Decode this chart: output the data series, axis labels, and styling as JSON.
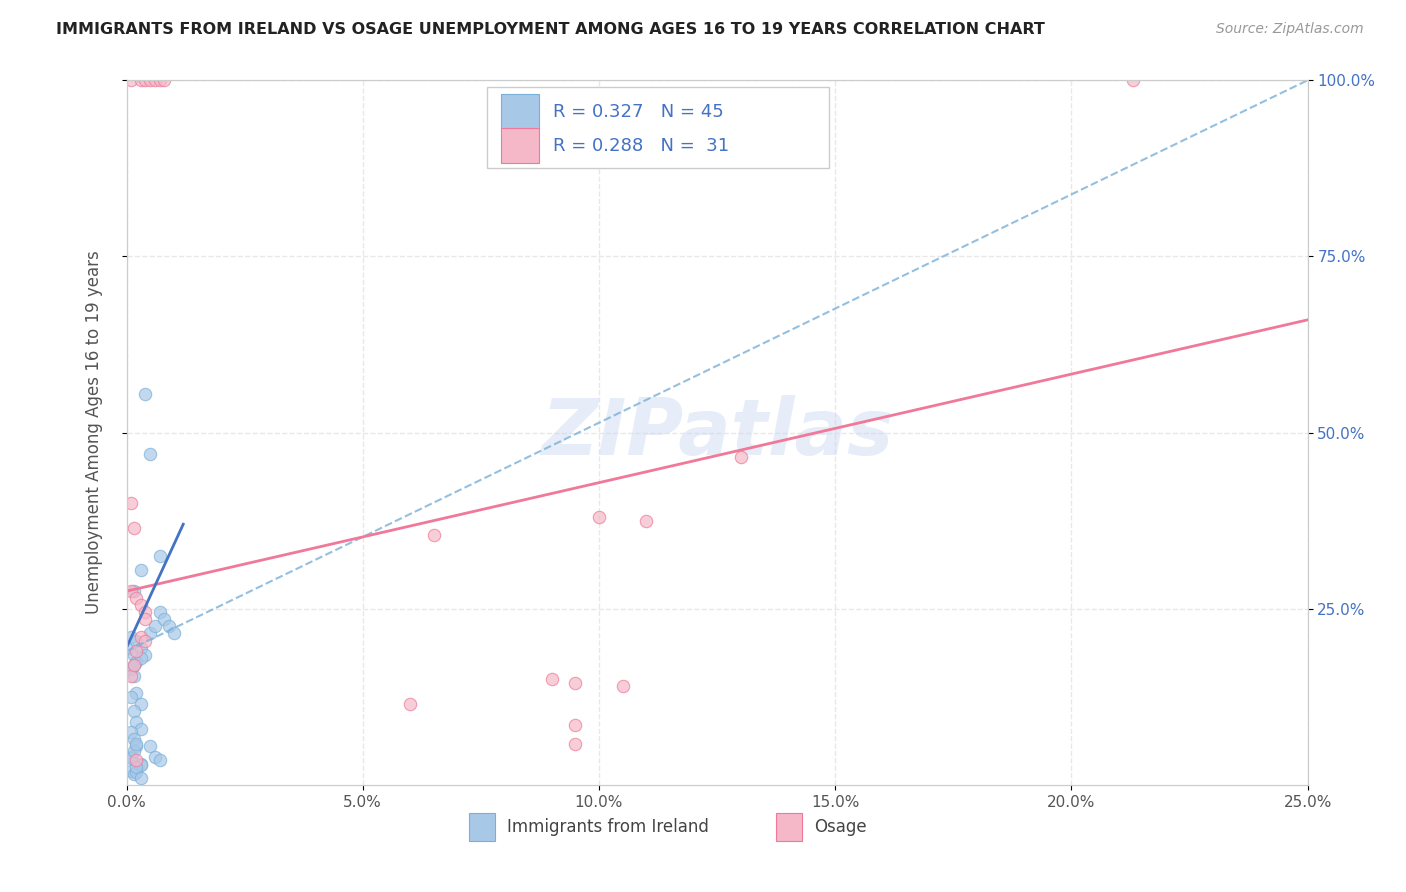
{
  "title": "IMMIGRANTS FROM IRELAND VS OSAGE UNEMPLOYMENT AMONG AGES 16 TO 19 YEARS CORRELATION CHART",
  "source": "Source: ZipAtlas.com",
  "ylabel": "Unemployment Among Ages 16 to 19 years",
  "legend_label1": "Immigrants from Ireland",
  "legend_label2": "Osage",
  "R1": 0.327,
  "N1": 45,
  "R2": 0.288,
  "N2": 31,
  "xlim": [
    0.0,
    0.25
  ],
  "ylim": [
    0.0,
    1.0
  ],
  "xticks": [
    0.0,
    0.05,
    0.1,
    0.15,
    0.2,
    0.25
  ],
  "yticks": [
    0.25,
    0.5,
    0.75,
    1.0
  ],
  "xtick_labels": [
    "0.0%",
    "5.0%",
    "10.0%",
    "15.0%",
    "20.0%",
    "25.0%"
  ],
  "ytick_labels_right": [
    "25.0%",
    "50.0%",
    "75.0%",
    "100.0%"
  ],
  "color_blue": "#a8c8e8",
  "color_pink": "#f4b8c8",
  "line_blue_dash": "#7ab0d8",
  "line_pink_solid": "#f07898",
  "line_blue_solid": "#4472c4",
  "blue_scatter": [
    [
      0.0005,
      0.195
    ],
    [
      0.001,
      0.21
    ],
    [
      0.0015,
      0.185
    ],
    [
      0.001,
      0.165
    ],
    [
      0.002,
      0.175
    ],
    [
      0.0015,
      0.155
    ],
    [
      0.002,
      0.13
    ],
    [
      0.001,
      0.125
    ],
    [
      0.003,
      0.115
    ],
    [
      0.0015,
      0.105
    ],
    [
      0.002,
      0.09
    ],
    [
      0.003,
      0.08
    ],
    [
      0.001,
      0.075
    ],
    [
      0.0015,
      0.065
    ],
    [
      0.002,
      0.055
    ],
    [
      0.001,
      0.04
    ],
    [
      0.003,
      0.03
    ],
    [
      0.001,
      0.02
    ],
    [
      0.0015,
      0.015
    ],
    [
      0.002,
      0.018
    ],
    [
      0.003,
      0.028
    ],
    [
      0.001,
      0.038
    ],
    [
      0.0015,
      0.048
    ],
    [
      0.002,
      0.058
    ],
    [
      0.0015,
      0.17
    ],
    [
      0.003,
      0.305
    ],
    [
      0.004,
      0.555
    ],
    [
      0.005,
      0.47
    ],
    [
      0.005,
      0.215
    ],
    [
      0.006,
      0.225
    ],
    [
      0.007,
      0.325
    ],
    [
      0.007,
      0.245
    ],
    [
      0.008,
      0.235
    ],
    [
      0.009,
      0.225
    ],
    [
      0.01,
      0.215
    ],
    [
      0.002,
      0.205
    ],
    [
      0.003,
      0.195
    ],
    [
      0.004,
      0.185
    ],
    [
      0.0015,
      0.275
    ],
    [
      0.003,
      0.18
    ],
    [
      0.005,
      0.055
    ],
    [
      0.006,
      0.04
    ],
    [
      0.007,
      0.035
    ],
    [
      0.002,
      0.025
    ],
    [
      0.003,
      0.01
    ]
  ],
  "pink_scatter": [
    [
      0.001,
      1.0
    ],
    [
      0.003,
      1.0
    ],
    [
      0.004,
      1.0
    ],
    [
      0.005,
      1.0
    ],
    [
      0.006,
      1.0
    ],
    [
      0.007,
      1.0
    ],
    [
      0.008,
      1.0
    ],
    [
      0.213,
      1.0
    ],
    [
      0.001,
      0.4
    ],
    [
      0.0015,
      0.365
    ],
    [
      0.001,
      0.275
    ],
    [
      0.002,
      0.265
    ],
    [
      0.003,
      0.255
    ],
    [
      0.004,
      0.245
    ],
    [
      0.004,
      0.235
    ],
    [
      0.001,
      0.155
    ],
    [
      0.13,
      0.465
    ],
    [
      0.1,
      0.38
    ],
    [
      0.11,
      0.375
    ],
    [
      0.065,
      0.355
    ],
    [
      0.003,
      0.21
    ],
    [
      0.004,
      0.205
    ],
    [
      0.002,
      0.19
    ],
    [
      0.0015,
      0.17
    ],
    [
      0.095,
      0.145
    ],
    [
      0.105,
      0.14
    ],
    [
      0.095,
      0.085
    ],
    [
      0.095,
      0.058
    ],
    [
      0.09,
      0.15
    ],
    [
      0.06,
      0.115
    ],
    [
      0.002,
      0.035
    ]
  ],
  "blue_dashed_line": [
    [
      0.0,
      0.19
    ],
    [
      0.25,
      1.0
    ]
  ],
  "pink_solid_line": [
    [
      0.0,
      0.275
    ],
    [
      0.25,
      0.66
    ]
  ],
  "blue_solid_line": [
    [
      0.0,
      0.195
    ],
    [
      0.012,
      0.37
    ]
  ],
  "background_color": "#ffffff",
  "grid_color": "#e8e8e8",
  "title_color": "#222222",
  "watermark": "ZIPatlas",
  "R_color": "#4472c4"
}
